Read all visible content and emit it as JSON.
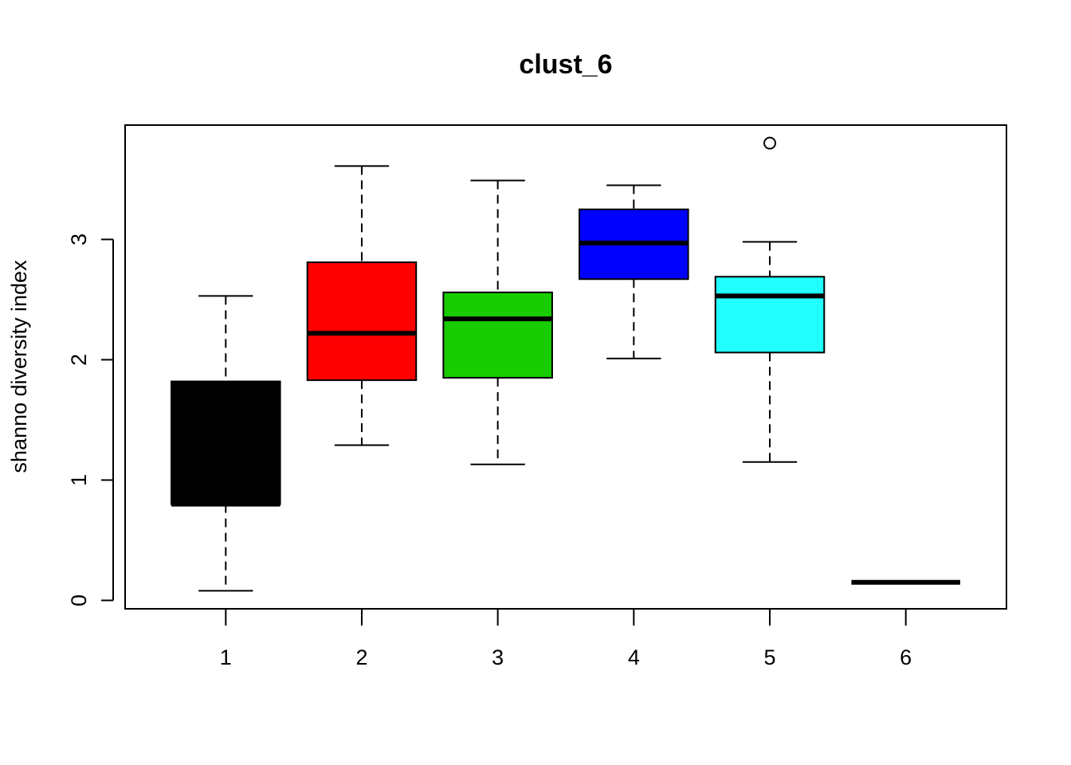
{
  "chart_data": {
    "type": "boxplot",
    "title": "clust_6",
    "xlabel": "",
    "ylabel": "shanno diversity index",
    "categories": [
      "1",
      "2",
      "3",
      "4",
      "5",
      "6"
    ],
    "y_ticks": [
      0,
      1,
      2,
      3
    ],
    "y_tick_labels": [
      "0",
      "1",
      "2",
      "3"
    ],
    "ylim": [
      -0.07,
      3.95
    ],
    "grid": false,
    "boxes": [
      {
        "category": "1",
        "color": "#000000",
        "whisker_low": 0.08,
        "q1": 0.8,
        "median": 0.8,
        "q3": 1.82,
        "whisker_high": 2.53,
        "outliers": []
      },
      {
        "category": "2",
        "color": "#FF0000",
        "whisker_low": 1.29,
        "q1": 1.83,
        "median": 2.22,
        "q3": 2.81,
        "whisker_high": 3.61,
        "outliers": []
      },
      {
        "category": "3",
        "color": "#19CC00",
        "whisker_low": 1.13,
        "q1": 1.85,
        "median": 2.34,
        "q3": 2.56,
        "whisker_high": 3.49,
        "outliers": []
      },
      {
        "category": "4",
        "color": "#0000FF",
        "whisker_low": 2.01,
        "q1": 2.67,
        "median": 2.97,
        "q3": 3.25,
        "whisker_high": 3.45,
        "outliers": []
      },
      {
        "category": "5",
        "color": "#22FFFF",
        "whisker_low": 1.15,
        "q1": 2.06,
        "median": 2.53,
        "q3": 2.69,
        "whisker_high": 2.98,
        "outliers": [
          3.8
        ]
      },
      {
        "category": "6",
        "color": "#000000",
        "whisker_low": 0.15,
        "q1": 0.15,
        "median": 0.15,
        "q3": 0.15,
        "whisker_high": 0.15,
        "outliers": []
      }
    ]
  }
}
